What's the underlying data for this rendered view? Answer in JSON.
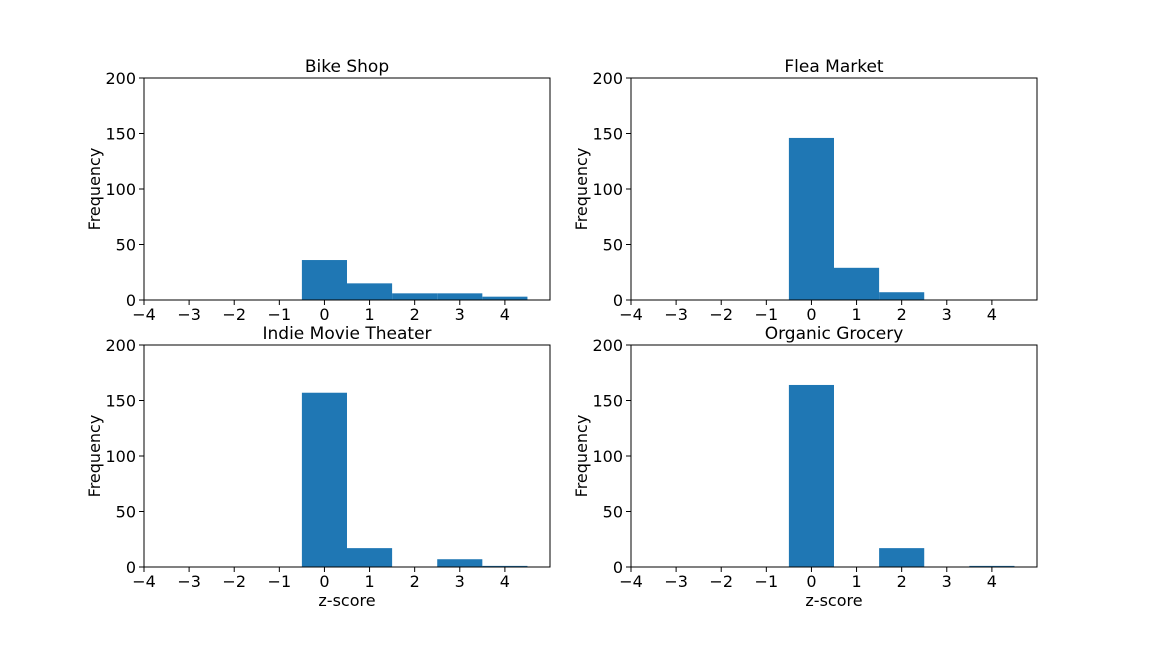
{
  "chart_data": [
    {
      "type": "bar",
      "title": "Bike Shop",
      "xlabel": "",
      "ylabel": "Frequency",
      "xlim": [
        -4,
        5
      ],
      "ylim": [
        0,
        200
      ],
      "xticks": [
        "−4",
        "−3",
        "−2",
        "−1",
        "0",
        "1",
        "2",
        "3",
        "4"
      ],
      "yticks": [
        "0",
        "50",
        "100",
        "150",
        "200"
      ],
      "bins": [
        {
          "x0": -0.5,
          "x1": 0.5,
          "value": 36
        },
        {
          "x0": 0.5,
          "x1": 1.5,
          "value": 15
        },
        {
          "x0": 1.5,
          "x1": 2.5,
          "value": 6
        },
        {
          "x0": 2.5,
          "x1": 3.5,
          "value": 6
        },
        {
          "x0": 3.5,
          "x1": 4.5,
          "value": 3
        }
      ]
    },
    {
      "type": "bar",
      "title": "Flea Market",
      "xlabel": "",
      "ylabel": "Frequency",
      "xlim": [
        -4,
        5
      ],
      "ylim": [
        0,
        200
      ],
      "xticks": [
        "−4",
        "−3",
        "−2",
        "−1",
        "0",
        "1",
        "2",
        "3",
        "4"
      ],
      "yticks": [
        "0",
        "50",
        "100",
        "150",
        "200"
      ],
      "bins": [
        {
          "x0": -0.5,
          "x1": 0.5,
          "value": 146
        },
        {
          "x0": 0.5,
          "x1": 1.5,
          "value": 29
        },
        {
          "x0": 1.5,
          "x1": 2.5,
          "value": 7
        }
      ]
    },
    {
      "type": "bar",
      "title": "Indie Movie Theater",
      "xlabel": "z-score",
      "ylabel": "Frequency",
      "xlim": [
        -4,
        5
      ],
      "ylim": [
        0,
        200
      ],
      "xticks": [
        "−4",
        "−3",
        "−2",
        "−1",
        "0",
        "1",
        "2",
        "3",
        "4"
      ],
      "yticks": [
        "0",
        "50",
        "100",
        "150",
        "200"
      ],
      "bins": [
        {
          "x0": -0.5,
          "x1": 0.5,
          "value": 157
        },
        {
          "x0": 0.5,
          "x1": 1.5,
          "value": 17
        },
        {
          "x0": 2.5,
          "x1": 3.5,
          "value": 7
        },
        {
          "x0": 3.5,
          "x1": 4.5,
          "value": 1
        }
      ]
    },
    {
      "type": "bar",
      "title": "Organic Grocery",
      "xlabel": "z-score",
      "ylabel": "Frequency",
      "xlim": [
        -4,
        5
      ],
      "ylim": [
        0,
        200
      ],
      "xticks": [
        "−4",
        "−3",
        "−2",
        "−1",
        "0",
        "1",
        "2",
        "3",
        "4"
      ],
      "yticks": [
        "0",
        "50",
        "100",
        "150",
        "200"
      ],
      "bins": [
        {
          "x0": -0.5,
          "x1": 0.5,
          "value": 164
        },
        {
          "x0": 1.5,
          "x1": 2.5,
          "value": 17
        },
        {
          "x0": 3.5,
          "x1": 4.5,
          "value": 1
        }
      ]
    }
  ],
  "colors": {
    "bar": "#1f77b4",
    "axes": "#000000",
    "background": "#ffffff"
  }
}
